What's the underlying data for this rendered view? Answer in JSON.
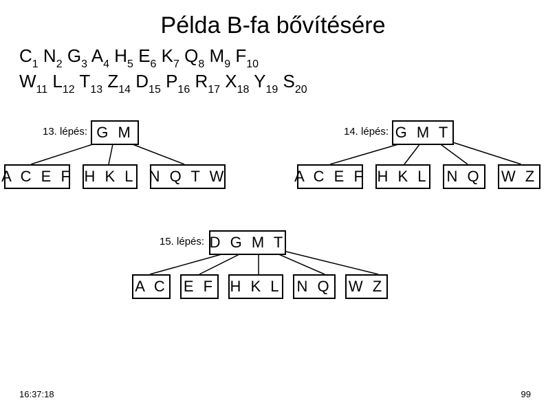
{
  "title": "Példa B-fa bővítésére",
  "sequence_line1": [
    {
      "letter": "C",
      "sub": "1"
    },
    {
      "letter": "N",
      "sub": "2"
    },
    {
      "letter": "G",
      "sub": "3"
    },
    {
      "letter": "A",
      "sub": "4"
    },
    {
      "letter": "H",
      "sub": "5"
    },
    {
      "letter": "E",
      "sub": "6"
    },
    {
      "letter": "K",
      "sub": "7"
    },
    {
      "letter": "Q",
      "sub": "8"
    },
    {
      "letter": "M",
      "sub": "9"
    },
    {
      "letter": "F",
      "sub": "10"
    }
  ],
  "sequence_line2": [
    {
      "letter": "W",
      "sub": "11"
    },
    {
      "letter": "L",
      "sub": "12"
    },
    {
      "letter": "T",
      "sub": "13"
    },
    {
      "letter": "Z",
      "sub": "14"
    },
    {
      "letter": "D",
      "sub": "15"
    },
    {
      "letter": "P",
      "sub": "16"
    },
    {
      "letter": "R",
      "sub": "17"
    },
    {
      "letter": "X",
      "sub": "18"
    },
    {
      "letter": "Y",
      "sub": "19"
    },
    {
      "letter": "S",
      "sub": "20"
    }
  ],
  "step13": {
    "label": "13. lépés:",
    "root": "G M",
    "children": [
      "A C E F",
      "H K L",
      "N Q T W"
    ]
  },
  "step14": {
    "label": "14. lépés:",
    "root": "G M T",
    "children": [
      "A C E F",
      "H K L",
      "N Q",
      "W Z"
    ]
  },
  "step15": {
    "label": "15. lépés:",
    "root": "D G M T",
    "children": [
      "A C",
      "E F",
      "H K L",
      "N Q",
      "W Z"
    ]
  },
  "footer": {
    "time": "16:37:18",
    "page": "99"
  },
  "colors": {
    "bg": "#ffffff",
    "fg": "#000000"
  }
}
